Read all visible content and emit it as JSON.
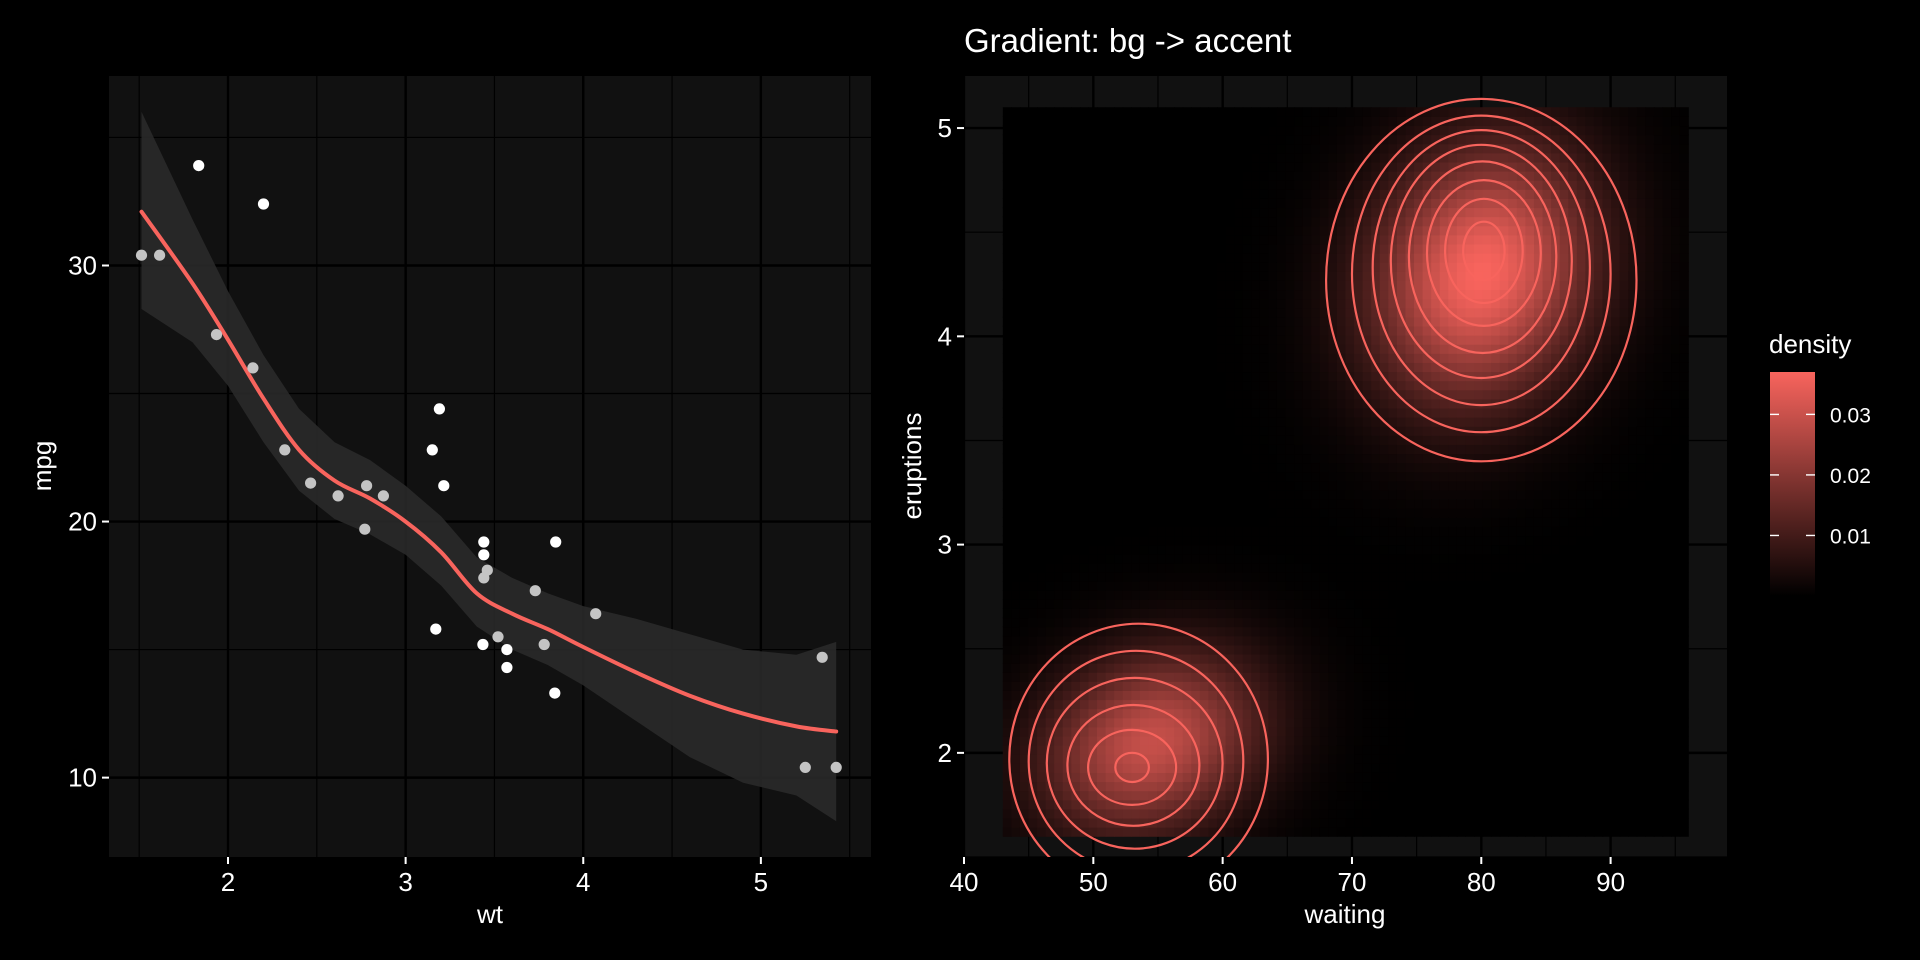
{
  "colors": {
    "background": "#000000",
    "panel": "#111111",
    "grid": "#000000",
    "text": "#ffffff",
    "accent": "#f8645d",
    "ribbon": "#2b2b2b",
    "point": "#ffffff"
  },
  "chart_data": [
    {
      "type": "scatter",
      "title": "",
      "xlabel": "wt",
      "ylabel": "mpg",
      "xlim": [
        1.33,
        5.62
      ],
      "ylim": [
        6.9,
        37.4
      ],
      "xticks": [
        2,
        3,
        4,
        5
      ],
      "yticks": [
        10,
        20,
        30
      ],
      "grid": true,
      "points": [
        [
          2.62,
          21.0
        ],
        [
          2.875,
          21.0
        ],
        [
          2.32,
          22.8
        ],
        [
          3.215,
          21.4
        ],
        [
          3.44,
          18.7
        ],
        [
          3.46,
          18.1
        ],
        [
          3.57,
          14.3
        ],
        [
          3.19,
          24.4
        ],
        [
          3.15,
          22.8
        ],
        [
          3.44,
          19.2
        ],
        [
          3.44,
          17.8
        ],
        [
          4.07,
          16.4
        ],
        [
          3.73,
          17.3
        ],
        [
          3.78,
          15.2
        ],
        [
          5.25,
          10.4
        ],
        [
          5.424,
          10.4
        ],
        [
          5.345,
          14.7
        ],
        [
          2.2,
          32.4
        ],
        [
          1.615,
          30.4
        ],
        [
          1.835,
          33.9
        ],
        [
          2.465,
          21.5
        ],
        [
          3.52,
          15.5
        ],
        [
          3.435,
          15.2
        ],
        [
          3.84,
          13.3
        ],
        [
          3.845,
          19.2
        ],
        [
          1.935,
          27.3
        ],
        [
          2.14,
          26.0
        ],
        [
          1.513,
          30.4
        ],
        [
          3.17,
          15.8
        ],
        [
          2.77,
          19.7
        ],
        [
          3.57,
          15.0
        ],
        [
          2.78,
          21.4
        ]
      ],
      "smooth": {
        "x": [
          1.513,
          1.8,
          2.0,
          2.2,
          2.4,
          2.6,
          2.8,
          3.0,
          3.2,
          3.4,
          3.6,
          3.8,
          4.0,
          4.3,
          4.6,
          4.9,
          5.2,
          5.424
        ],
        "y": [
          32.1,
          29.3,
          27.1,
          24.8,
          22.8,
          21.6,
          20.9,
          20.0,
          18.8,
          17.2,
          16.4,
          15.8,
          15.1,
          14.1,
          13.2,
          12.5,
          12.0,
          11.8
        ],
        "lower": [
          28.3,
          27.0,
          25.3,
          23.1,
          21.2,
          20.1,
          19.5,
          18.7,
          17.5,
          15.9,
          15.0,
          14.4,
          13.6,
          12.2,
          10.8,
          9.8,
          9.3,
          8.3
        ],
        "upper": [
          36.0,
          31.8,
          29.0,
          26.5,
          24.4,
          23.1,
          22.4,
          21.4,
          20.2,
          18.6,
          17.8,
          17.2,
          16.7,
          16.2,
          15.6,
          15.0,
          14.8,
          15.3
        ]
      }
    },
    {
      "type": "heatmap",
      "title": "Gradient: bg -> accent",
      "xlabel": "waiting",
      "ylabel": "eruptions",
      "xlim": [
        40,
        99
      ],
      "ylim": [
        1.5,
        5.25
      ],
      "xticks": [
        40,
        50,
        60,
        70,
        80,
        90
      ],
      "yticks": [
        2,
        3,
        4,
        5
      ],
      "grid": true,
      "data_extent": {
        "x": [
          43,
          96
        ],
        "y": [
          1.6,
          5.1
        ]
      },
      "density_components": [
        {
          "weight": 0.36,
          "mean": [
            54.5,
            2.05
          ],
          "sd": [
            5.8,
            0.3
          ],
          "cor": 0.2
        },
        {
          "weight": 0.64,
          "mean": [
            80.0,
            4.3
          ],
          "sd": [
            5.8,
            0.42
          ],
          "cor": 0.15
        }
      ],
      "contours": [
        {
          "level": 0.002,
          "rings": [
            {
              "cx": 53.5,
              "cy": 1.97,
              "rx": 10.0,
              "ry": 0.65
            },
            {
              "cx": 80.0,
              "cy": 4.27,
              "rx": 12.0,
              "ry": 0.87
            }
          ]
        },
        {
          "level": 0.005,
          "rings": [
            {
              "cx": 53.3,
              "cy": 1.96,
              "rx": 8.3,
              "ry": 0.53
            },
            {
              "cx": 80.0,
              "cy": 4.3,
              "rx": 10.0,
              "ry": 0.76
            }
          ]
        },
        {
          "level": 0.01,
          "rings": [
            {
              "cx": 53.2,
              "cy": 1.95,
              "rx": 6.8,
              "ry": 0.41
            },
            {
              "cx": 80.0,
              "cy": 4.33,
              "rx": 8.4,
              "ry": 0.66
            }
          ]
        },
        {
          "level": 0.015,
          "rings": [
            {
              "cx": 53.1,
              "cy": 1.94,
              "rx": 5.1,
              "ry": 0.29
            },
            {
              "cx": 80.0,
              "cy": 4.36,
              "rx": 7.0,
              "ry": 0.56
            }
          ]
        },
        {
          "level": 0.02,
          "rings": [
            {
              "cx": 53.0,
              "cy": 1.93,
              "rx": 3.4,
              "ry": 0.18
            },
            {
              "cx": 80.1,
              "cy": 4.38,
              "rx": 5.7,
              "ry": 0.46
            }
          ]
        },
        {
          "level": 0.025,
          "rings": [
            {
              "cx": 80.2,
              "cy": 4.4,
              "rx": 4.4,
              "ry": 0.35
            }
          ]
        },
        {
          "level": 0.03,
          "rings": [
            {
              "cx": 53.0,
              "cy": 1.93,
              "rx": 1.3,
              "ry": 0.07
            },
            {
              "cx": 80.2,
              "cy": 4.41,
              "rx": 3.0,
              "ry": 0.25
            }
          ]
        },
        {
          "level": 0.035,
          "rings": [
            {
              "cx": 80.2,
              "cy": 4.41,
              "rx": 1.6,
              "ry": 0.14
            }
          ]
        }
      ],
      "legend": {
        "title": "density",
        "position": "right",
        "range": [
          0,
          0.037
        ],
        "breaks": [
          0.01,
          0.02,
          0.03
        ],
        "break_labels": [
          "0.01",
          "0.02",
          "0.03"
        ],
        "low_color": "#000000",
        "high_color": "#f8645d"
      }
    }
  ]
}
